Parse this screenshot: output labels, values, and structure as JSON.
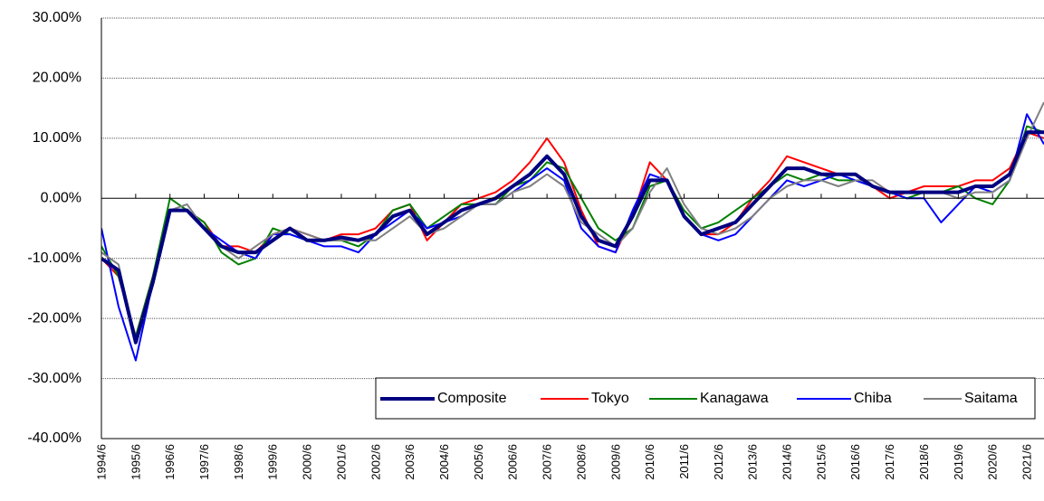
{
  "chart_data": {
    "type": "line",
    "categories": [
      "1994/6",
      null,
      "1995/6",
      null,
      "1996/6",
      null,
      "1997/6",
      null,
      "1998/6",
      null,
      "1999/6",
      null,
      "2000/6",
      null,
      "2001/6",
      null,
      "2002/6",
      null,
      "2003/6",
      null,
      "2004/6",
      null,
      "2005/6",
      null,
      "2006/6",
      null,
      "2007/6",
      null,
      "2008/6",
      null,
      "2009/6",
      null,
      "2010/6",
      null,
      "2011/6",
      null,
      "2012/6",
      null,
      "2013/6",
      null,
      "2014/6",
      null,
      "2015/6",
      null,
      "2016/6",
      null,
      "2017/6",
      null,
      "2018/6",
      null,
      "2019/6",
      null,
      "2020/6",
      null,
      "2021/6",
      null
    ],
    "series": [
      {
        "name": "Composite",
        "color": "#000080",
        "width": 4,
        "values": [
          -10,
          -12,
          -24,
          -14,
          -2,
          -2,
          -5,
          -8,
          -9,
          -9,
          -7,
          -5,
          -7,
          -7,
          -6.5,
          -7,
          -6,
          -3,
          -2,
          -6,
          -4,
          -2,
          -1,
          0,
          2,
          4,
          7,
          4,
          -3,
          -7,
          -8,
          -3,
          3,
          3,
          -3,
          -6,
          -5,
          -4,
          -1,
          2,
          5,
          5,
          4,
          4,
          4,
          2,
          1,
          1,
          1,
          1,
          1,
          2,
          2,
          4,
          11,
          11
        ]
      },
      {
        "name": "Tokyo",
        "color": "#ff0000",
        "width": 2,
        "values": [
          -10,
          -13,
          -23,
          -13,
          -2,
          -2,
          -4,
          -8,
          -8,
          -9,
          -6,
          -5,
          -6,
          -7,
          -6,
          -6,
          -5,
          -2,
          -1,
          -7,
          -4,
          -1,
          0,
          1,
          3,
          6,
          10,
          6,
          -2,
          -8,
          -9,
          -3,
          6,
          3,
          -3,
          -6,
          -6,
          -4,
          0,
          3,
          7,
          6,
          5,
          4,
          4,
          2,
          0,
          1,
          2,
          2,
          2,
          3,
          3,
          5,
          11,
          10
        ]
      },
      {
        "name": "Kanagawa",
        "color": "#008000",
        "width": 2,
        "values": [
          -8,
          -13,
          -23,
          -13,
          0,
          -2,
          -4,
          -9,
          -11,
          -10,
          -5,
          -6,
          -7,
          -7,
          -7,
          -8,
          -6,
          -2,
          -1,
          -5,
          -3,
          -1,
          -1,
          -1,
          2,
          3,
          6,
          5,
          0,
          -5,
          -7,
          -5,
          2,
          3,
          -2,
          -5,
          -4,
          -2,
          0,
          2,
          4,
          3,
          4,
          3,
          3,
          2,
          1,
          0,
          1,
          1,
          2,
          0,
          -1,
          3,
          12,
          11
        ]
      },
      {
        "name": "Chiba",
        "color": "#0000ff",
        "width": 2,
        "values": [
          -5,
          -18,
          -27,
          -14,
          -2,
          -2,
          -5,
          -7,
          -9,
          -10,
          -6,
          -6,
          -7,
          -8,
          -8,
          -9,
          -6,
          -4,
          -2,
          -5,
          -4,
          -3,
          -1,
          -1,
          1,
          3,
          5,
          3,
          -5,
          -8,
          -9,
          -2,
          4,
          3,
          -3,
          -6,
          -7,
          -6,
          -3,
          0,
          3,
          2,
          3,
          4,
          3,
          2,
          1,
          0,
          0,
          -4,
          -1,
          2,
          1,
          3,
          14,
          9
        ]
      },
      {
        "name": "Saitama",
        "color": "#808080",
        "width": 2,
        "values": [
          -9,
          -11,
          -24,
          -14,
          -2,
          -1,
          -5,
          -8,
          -10,
          -8,
          -6,
          -5,
          -6,
          -7,
          -7,
          -7,
          -7,
          -5,
          -3,
          -6,
          -5,
          -3,
          -1,
          -1,
          1,
          2,
          4,
          2,
          -4,
          -6,
          -8,
          -5,
          1,
          5,
          -1,
          -5,
          -6,
          -5,
          -3,
          0,
          2,
          3,
          3,
          2,
          3,
          3,
          1,
          1,
          1,
          1,
          0,
          1,
          1,
          3,
          10,
          16
        ]
      }
    ],
    "ylim": [
      -40,
      30
    ],
    "yticks": [
      {
        "value": -40,
        "label": "-40.00%"
      },
      {
        "value": -30,
        "label": "-30.00%"
      },
      {
        "value": -20,
        "label": "-20.00%"
      },
      {
        "value": -10,
        "label": "-10.00%"
      },
      {
        "value": 0,
        "label": "0.00%"
      },
      {
        "value": 10,
        "label": "10.00%"
      },
      {
        "value": 20,
        "label": "20.00%"
      },
      {
        "value": 30,
        "label": "30.00%"
      }
    ],
    "grid": true,
    "legend": "lower right"
  }
}
